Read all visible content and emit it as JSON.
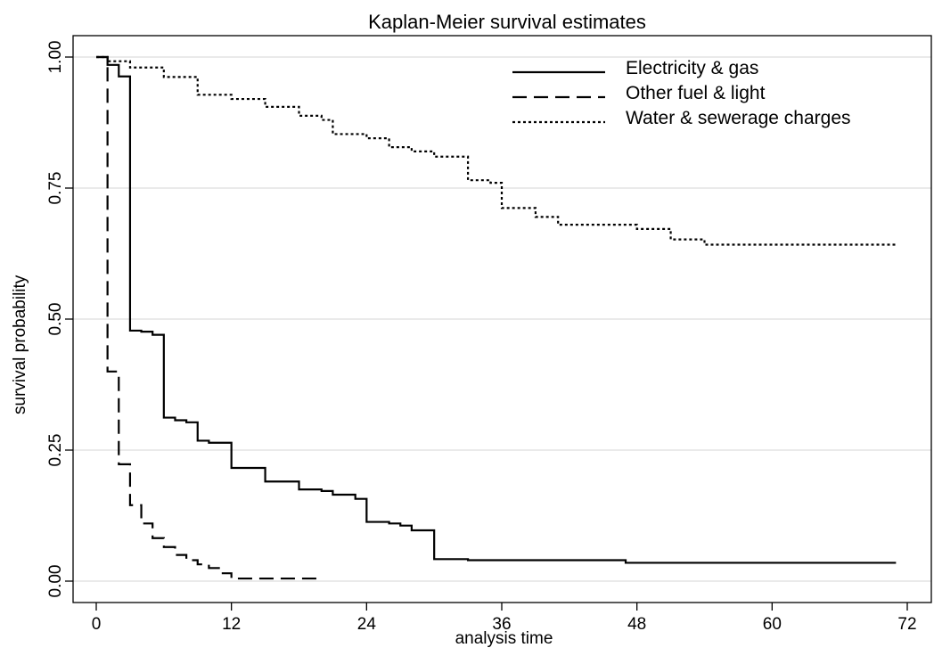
{
  "chart_data": {
    "type": "line",
    "step": true,
    "title": "Kaplan-Meier survival estimates",
    "xlabel": "analysis time",
    "ylabel": "survival probability",
    "xlim": [
      0,
      72
    ],
    "ylim": [
      0,
      1
    ],
    "xticks": [
      0,
      12,
      24,
      36,
      48,
      60,
      72
    ],
    "yticks": [
      0,
      0.25,
      0.5,
      0.75,
      1
    ],
    "ytick_labels": [
      "0.00",
      "0.25",
      "0.50",
      "0.75",
      "1.00"
    ],
    "grid": "horizontal",
    "legend_position": "top-right",
    "series": [
      {
        "name": "Electricity & gas",
        "style": "solid",
        "x": [
          0,
          1,
          2,
          3,
          4,
          5,
          6,
          7,
          8,
          9,
          10,
          12,
          15,
          18,
          20,
          21,
          23,
          24,
          26,
          27,
          28,
          30,
          33,
          36,
          47,
          71
        ],
        "y": [
          1.0,
          0.985,
          0.963,
          0.478,
          0.476,
          0.47,
          0.312,
          0.307,
          0.303,
          0.268,
          0.264,
          0.216,
          0.19,
          0.175,
          0.172,
          0.165,
          0.157,
          0.113,
          0.11,
          0.106,
          0.097,
          0.042,
          0.04,
          0.04,
          0.035,
          0.035
        ]
      },
      {
        "name": "Other fuel & light",
        "style": "dashed",
        "x": [
          0,
          1,
          2,
          3,
          4,
          5,
          6,
          7,
          8,
          9,
          10,
          11,
          12,
          20
        ],
        "y": [
          1.0,
          0.4,
          0.223,
          0.145,
          0.11,
          0.082,
          0.065,
          0.05,
          0.04,
          0.032,
          0.025,
          0.015,
          0.005,
          0.003
        ]
      },
      {
        "name": "Water & sewerage charges",
        "style": "dotted",
        "x": [
          0,
          1,
          3,
          6,
          9,
          12,
          15,
          18,
          20,
          21,
          24,
          26,
          28,
          30,
          33,
          35,
          36,
          39,
          41,
          47,
          48,
          51,
          54,
          71
        ],
        "y": [
          1.0,
          0.992,
          0.98,
          0.962,
          0.928,
          0.92,
          0.905,
          0.888,
          0.88,
          0.853,
          0.845,
          0.828,
          0.82,
          0.81,
          0.765,
          0.76,
          0.712,
          0.695,
          0.68,
          0.68,
          0.672,
          0.652,
          0.642,
          0.642
        ]
      }
    ]
  }
}
